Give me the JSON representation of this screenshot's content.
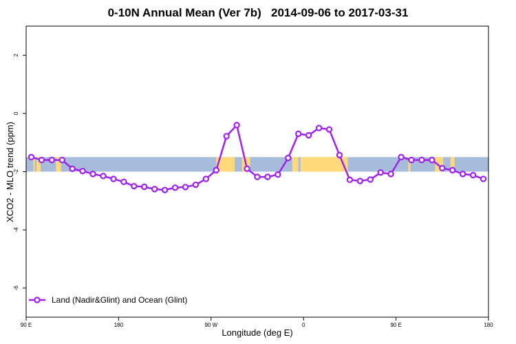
{
  "chart_data": {
    "type": "line",
    "title": "0-10N Annual Mean (Ver 7b)   2014-09-06 to 2017-03-31",
    "xlabel": "Longitude (deg E)",
    "ylabel": "XCO2 - MLO trend (ppm)",
    "x_axis_note": "longitude runs from 90 E eastward across the dateline to 180",
    "xlim": [
      90,
      540
    ],
    "ylim": [
      -7.0,
      3.0
    ],
    "x_ticks": [
      {
        "value": 90,
        "label": "90 E"
      },
      {
        "value": 180,
        "label": "180"
      },
      {
        "value": 270,
        "label": "90 W"
      },
      {
        "value": 360,
        "label": "0"
      },
      {
        "value": 450,
        "label": "90 E"
      },
      {
        "value": 540,
        "label": "180"
      }
    ],
    "y_ticks": [
      -6,
      -4,
      -2,
      0,
      2
    ],
    "grid": false,
    "legend_position": "bottom-left",
    "background_map_band": {
      "lat_range": "0-10N",
      "y_range": [
        -2.0,
        -1.5
      ],
      "land_color": "#FFD97A",
      "ocean_color": "#A7BCDA"
    },
    "series": [
      {
        "name": "Land (Nadir&Glint) and Ocean (Glint)",
        "color": "#A020F0",
        "x": [
          95,
          105,
          115,
          125,
          135,
          145,
          155,
          165,
          175,
          185,
          195,
          205,
          215,
          225,
          235,
          245,
          255,
          265,
          275,
          285,
          295,
          305,
          315,
          325,
          335,
          345,
          355,
          365,
          375,
          385,
          395,
          405,
          415,
          425,
          435,
          445,
          455,
          465,
          475,
          485,
          495,
          505,
          515,
          525,
          535
        ],
        "y": [
          -1.5,
          -1.6,
          -1.6,
          -1.6,
          -1.9,
          -1.98,
          -2.08,
          -2.15,
          -2.25,
          -2.35,
          -2.5,
          -2.52,
          -2.6,
          -2.63,
          -2.55,
          -2.53,
          -2.45,
          -2.25,
          -1.95,
          -0.78,
          -0.4,
          -1.9,
          -2.18,
          -2.18,
          -2.1,
          -1.53,
          -0.7,
          -0.75,
          -0.5,
          -0.55,
          -1.43,
          -2.28,
          -2.32,
          -2.27,
          -2.03,
          -2.08,
          -1.5,
          -1.6,
          -1.6,
          -1.6,
          -1.88,
          -1.95,
          -2.08,
          -2.12,
          -2.25
        ]
      }
    ]
  },
  "colors": {
    "line": "#A020F0",
    "land": "#FFD97A",
    "ocean": "#A7BCDA"
  }
}
